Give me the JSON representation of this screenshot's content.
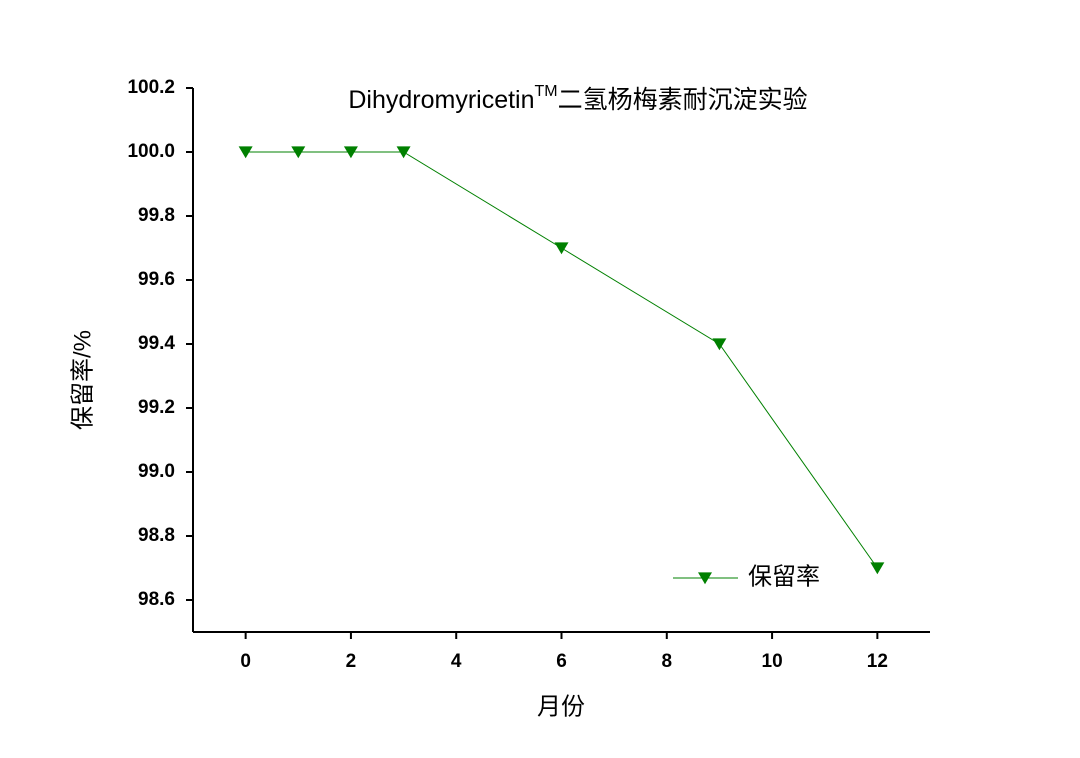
{
  "chart_data": {
    "type": "line",
    "title": [
      "Dihydromyricetin",
      "TM",
      "二氢杨梅素耐沉淀实验"
    ],
    "x_label": "月份",
    "y_label": "保留率/%",
    "x": [
      0,
      1,
      2,
      3,
      6,
      9,
      12
    ],
    "series": [
      {
        "name": "保留率",
        "color": "#008000",
        "values": [
          100.0,
          100.0,
          100.0,
          100.0,
          99.7,
          99.4,
          98.7
        ]
      }
    ],
    "xlim": [
      -1,
      13
    ],
    "xticks": [
      0,
      2,
      4,
      6,
      8,
      10,
      12
    ],
    "ylim": [
      98.5,
      100.2
    ],
    "yticks": [
      98.6,
      98.8,
      {
        "value": 99.0,
        "label": "99.0"
      },
      99.2,
      99.4,
      99.6,
      99.8,
      {
        "value": 100.0,
        "label": "100.0"
      },
      100.2
    ],
    "legend": "lower right",
    "marker": "down-triangle"
  }
}
